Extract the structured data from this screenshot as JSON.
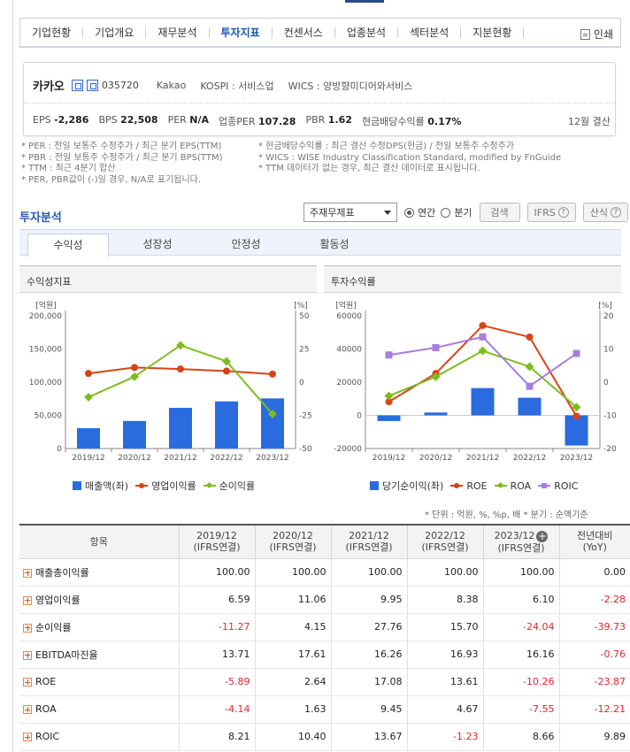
{
  "nav": {
    "items": [
      "기업현황",
      "기업개요",
      "재무분석",
      "투자지표",
      "컨센서스",
      "업종분석",
      "섹터분석",
      "지분현황"
    ],
    "active_index": 3,
    "print_label": "인쇄"
  },
  "summary": {
    "company_name": "카카오",
    "code": "035720",
    "english_name": "Kakao",
    "market": "KOSPI : 서비스업",
    "wics": "WICS : 양방향미디어와서비스",
    "eps_label": "EPS",
    "eps_value": "-2,286",
    "bps_label": "BPS",
    "bps_value": "22,508",
    "per_label": "PER",
    "per_value": "N/A",
    "sector_per_label": "업종PER",
    "sector_per_value": "107.28",
    "pbr_label": "PBR",
    "pbr_value": "1.62",
    "dividend_label": "현금배당수익률",
    "dividend_value": "0.17%",
    "settlement": "12월 결산"
  },
  "notes": {
    "left": [
      "* PER : 전일 보통주 수정주가 / 최근 분기 EPS(TTM)",
      "* PBR : 전일 보통주 수정주가 / 최근 분기 BPS(TTM)",
      "* TTM : 최근 4분기 합산",
      "* PER, PBR값이 (-)일 경우, N/A로 표기됩니다."
    ],
    "right": [
      "* 현금배당수익률 : 최근 결산 수정DPS(현금) / 전일 보통주 수정주가",
      "* WICS : WISE Industry Classification Standard, modified by FnGuide",
      "* TTM 데이터가 없는 경우, 최근 결산 데이터로 표시됩니다."
    ]
  },
  "analysis": {
    "title": "투자분석",
    "select_value": "주재무제표",
    "radio_annual": "연간",
    "radio_quarter": "분기",
    "search_button": "검색",
    "ifrs_button": "IFRS",
    "formula_button": "산식"
  },
  "tabs": [
    "수익성",
    "성장성",
    "안정성",
    "활동성"
  ],
  "panels": {
    "left_title": "수익성지표",
    "right_title": "투자수익률"
  },
  "legend": {
    "left": [
      "매출액(좌)",
      "영업이익률",
      "순이익률"
    ],
    "right": [
      "당기순이익(좌)",
      "ROE",
      "ROA",
      "ROIC"
    ]
  },
  "colors": {
    "bar": "#2a6be0",
    "operating": "#d84315",
    "net": "#7cbd1e",
    "roe": "#d84315",
    "roa": "#7cbd1e",
    "roic": "#a77ee0",
    "negative": "#e0262e",
    "accent": "#2a5db0"
  },
  "chart_data": [
    {
      "type": "bar+line",
      "title": "수익성지표",
      "categories": [
        "2019/12",
        "2020/12",
        "2021/12",
        "2022/12",
        "2023/12"
      ],
      "y_left_label": "[억원]",
      "y_right_label": "[%]",
      "y_left_ticks": [
        "200,000",
        "150,000",
        "100,000",
        "50,000",
        "0"
      ],
      "y_right_ticks": [
        "50",
        "25",
        "0",
        "-25",
        "-50"
      ],
      "ylim_left": [
        0,
        200000
      ],
      "ylim_right": [
        -50,
        50
      ],
      "series": [
        {
          "name": "매출액(좌)",
          "kind": "bar",
          "axis": "left",
          "values": [
            30701,
            41568,
            61367,
            71071,
            75570
          ]
        },
        {
          "name": "영업이익률",
          "kind": "line",
          "axis": "right",
          "values": [
            6.59,
            11.06,
            9.95,
            8.38,
            6.1
          ]
        },
        {
          "name": "순이익률",
          "kind": "line",
          "axis": "right",
          "values": [
            -11.27,
            4.15,
            27.76,
            15.7,
            -24.04
          ]
        }
      ]
    },
    {
      "type": "bar+line",
      "title": "투자수익률",
      "categories": [
        "2019/12",
        "2020/12",
        "2021/12",
        "2022/12",
        "2023/12"
      ],
      "y_left_label": "[억원]",
      "y_right_label": "[%]",
      "y_left_ticks": [
        "60000",
        "40000",
        "20000",
        "0",
        "-20000"
      ],
      "y_right_ticks": [
        "20",
        "10",
        "0",
        "-10",
        "-20"
      ],
      "ylim_left": [
        -20000,
        60000
      ],
      "ylim_right": [
        -20,
        20
      ],
      "series": [
        {
          "name": "당기순이익(좌)",
          "kind": "bar",
          "axis": "left",
          "values": [
            -3419,
            1734,
            16462,
            10628,
            -18166
          ]
        },
        {
          "name": "ROE",
          "kind": "line",
          "axis": "right",
          "values": [
            -5.89,
            2.64,
            17.08,
            13.61,
            -10.26
          ]
        },
        {
          "name": "ROA",
          "kind": "line",
          "axis": "right",
          "values": [
            -4.14,
            1.63,
            9.45,
            4.67,
            -7.55
          ]
        },
        {
          "name": "ROIC",
          "kind": "line",
          "axis": "right",
          "values": [
            8.21,
            10.4,
            13.67,
            -1.23,
            8.66
          ]
        }
      ]
    }
  ],
  "unit_note": "* 단위 : 억원, %, %p, 배     * 분기 : 순액기준",
  "table": {
    "header_item": "항목",
    "columns": [
      {
        "year": "2019/12",
        "basis": "(IFRS연결)"
      },
      {
        "year": "2020/12",
        "basis": "(IFRS연결)"
      },
      {
        "year": "2021/12",
        "basis": "(IFRS연결)"
      },
      {
        "year": "2022/12",
        "basis": "(IFRS연결)"
      },
      {
        "year": "2023/12",
        "basis": "(IFRS연결)"
      }
    ],
    "yoy_label": "전년대비",
    "yoy_sub": "(YoY)",
    "rows": [
      {
        "label": "매출총이익률",
        "values": [
          "100.00",
          "100.00",
          "100.00",
          "100.00",
          "100.00",
          "0.00"
        ]
      },
      {
        "label": "영업이익률",
        "values": [
          "6.59",
          "11.06",
          "9.95",
          "8.38",
          "6.10",
          "-2.28"
        ]
      },
      {
        "label": "순이익률",
        "values": [
          "-11.27",
          "4.15",
          "27.76",
          "15.70",
          "-24.04",
          "-39.73"
        ]
      },
      {
        "label": "EBITDA마진율",
        "values": [
          "13.71",
          "17.61",
          "16.26",
          "16.93",
          "16.16",
          "-0.76"
        ]
      },
      {
        "label": "ROE",
        "values": [
          "-5.89",
          "2.64",
          "17.08",
          "13.61",
          "-10.26",
          "-23.87"
        ]
      },
      {
        "label": "ROA",
        "values": [
          "-4.14",
          "1.63",
          "9.45",
          "4.67",
          "-7.55",
          "-12.21"
        ]
      },
      {
        "label": "ROIC",
        "values": [
          "8.21",
          "10.40",
          "13.67",
          "-1.23",
          "8.66",
          "9.89"
        ]
      }
    ]
  }
}
